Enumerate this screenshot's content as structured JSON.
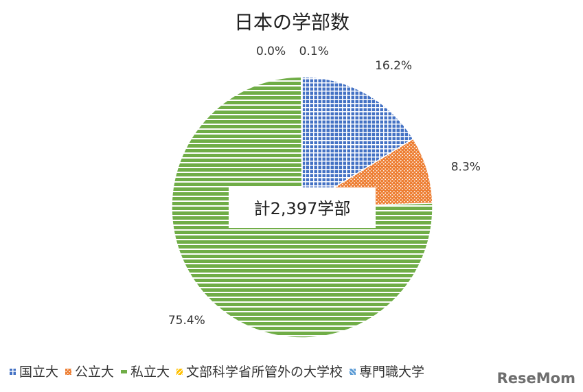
{
  "chart_data": {
    "type": "pie",
    "title": "日本の学部数",
    "total_label": "計2,397学部",
    "categories": [
      "国立大",
      "公立大",
      "私立大",
      "文部科学省所管外の大学校",
      "専門職大学"
    ],
    "values": [
      16.2,
      8.3,
      75.4,
      0.0,
      0.1
    ],
    "value_labels": [
      "16.2%",
      "8.3%",
      "75.4%",
      "0.0%",
      "0.1%"
    ],
    "colors": [
      "#4472C4",
      "#ED7D31",
      "#70AD47",
      "#FFC000",
      "#5B9BD5"
    ],
    "legend": {
      "position": "bottom",
      "entries": [
        "国立大",
        "公立大",
        "私立大",
        "文部科学省所管外の大学校",
        "専門職大学"
      ]
    }
  },
  "watermark": "ReseMom"
}
